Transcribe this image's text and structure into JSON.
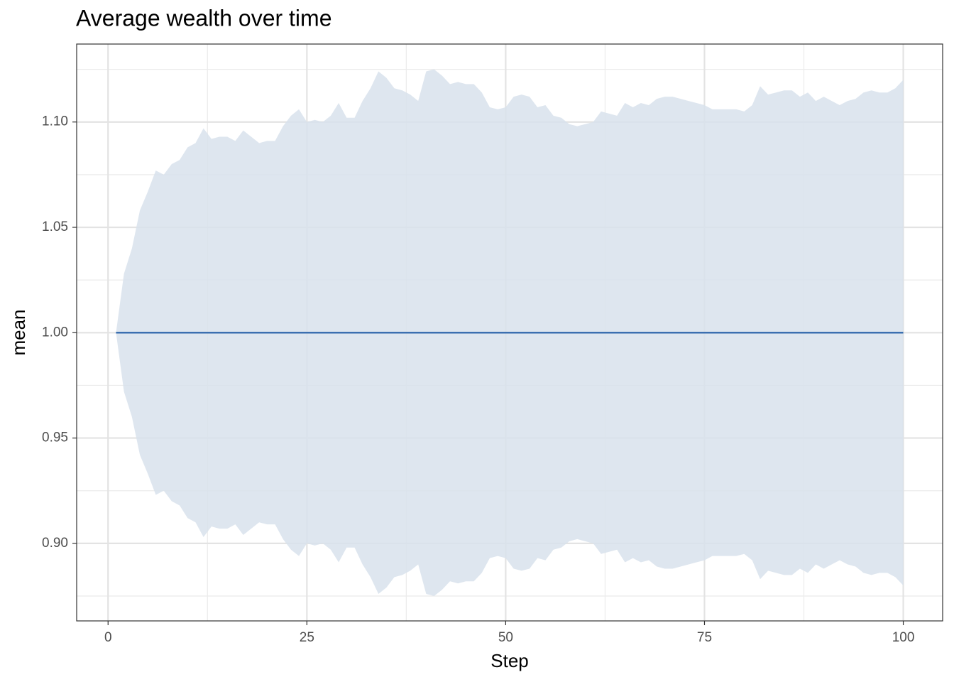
{
  "chart_data": {
    "type": "line",
    "title": "Average wealth over time",
    "x_label": "Step",
    "y_label": "mean",
    "x": [
      1,
      2,
      3,
      4,
      5,
      6,
      7,
      8,
      9,
      10,
      11,
      12,
      13,
      14,
      15,
      16,
      17,
      18,
      19,
      20,
      21,
      22,
      23,
      24,
      25,
      26,
      27,
      28,
      29,
      30,
      31,
      32,
      33,
      34,
      35,
      36,
      37,
      38,
      39,
      40,
      41,
      42,
      43,
      44,
      45,
      46,
      47,
      48,
      49,
      50,
      51,
      52,
      53,
      54,
      55,
      56,
      57,
      58,
      59,
      60,
      61,
      62,
      63,
      64,
      65,
      66,
      67,
      68,
      69,
      70,
      71,
      72,
      73,
      74,
      75,
      76,
      77,
      78,
      79,
      80,
      81,
      82,
      83,
      84,
      85,
      86,
      87,
      88,
      89,
      90,
      91,
      92,
      93,
      94,
      95,
      96,
      97,
      98,
      99,
      100
    ],
    "series": [
      {
        "color": "#3b6fb0",
        "values": [
          1,
          1,
          1,
          1,
          1,
          1,
          1,
          1,
          1,
          1,
          1,
          1,
          1,
          1,
          1,
          1,
          1,
          1,
          1,
          1,
          1,
          1,
          1,
          1,
          1,
          1,
          1,
          1,
          1,
          1,
          1,
          1,
          1,
          1,
          1,
          1,
          1,
          1,
          1,
          1,
          1,
          1,
          1,
          1,
          1,
          1,
          1,
          1,
          1,
          1,
          1,
          1,
          1,
          1,
          1,
          1,
          1,
          1,
          1,
          1,
          1,
          1,
          1,
          1,
          1,
          1,
          1,
          1,
          1,
          1,
          1,
          1,
          1,
          1,
          1,
          1,
          1,
          1,
          1,
          1,
          1,
          1,
          1,
          1,
          1,
          1,
          1,
          1,
          1,
          1,
          1,
          1,
          1,
          1,
          1,
          1,
          1,
          1,
          1,
          1
        ]
      }
    ],
    "band": {
      "color": "#d8e2ec",
      "upper": [
        1.0,
        1.028,
        1.04,
        1.058,
        1.067,
        1.077,
        1.075,
        1.08,
        1.082,
        1.088,
        1.09,
        1.097,
        1.092,
        1.093,
        1.093,
        1.091,
        1.096,
        1.093,
        1.09,
        1.091,
        1.091,
        1.098,
        1.103,
        1.106,
        1.1,
        1.101,
        1.1,
        1.103,
        1.109,
        1.102,
        1.102,
        1.11,
        1.116,
        1.124,
        1.121,
        1.116,
        1.115,
        1.113,
        1.11,
        1.124,
        1.125,
        1.122,
        1.118,
        1.119,
        1.118,
        1.118,
        1.114,
        1.107,
        1.106,
        1.107,
        1.112,
        1.113,
        1.112,
        1.107,
        1.108,
        1.103,
        1.102,
        1.099,
        1.098,
        1.099,
        1.1,
        1.105,
        1.104,
        1.103,
        1.109,
        1.107,
        1.109,
        1.108,
        1.111,
        1.112,
        1.112,
        1.111,
        1.11,
        1.109,
        1.108,
        1.106,
        1.106,
        1.106,
        1.106,
        1.105,
        1.108,
        1.117,
        1.113,
        1.114,
        1.115,
        1.115,
        1.112,
        1.114,
        1.11,
        1.112,
        1.11,
        1.108,
        1.11,
        1.111,
        1.114,
        1.115,
        1.114,
        1.114,
        1.116,
        1.12
      ],
      "lower": [
        1.0,
        0.972,
        0.96,
        0.942,
        0.933,
        0.923,
        0.925,
        0.92,
        0.918,
        0.912,
        0.91,
        0.903,
        0.908,
        0.907,
        0.907,
        0.909,
        0.904,
        0.907,
        0.91,
        0.909,
        0.909,
        0.902,
        0.897,
        0.894,
        0.9,
        0.899,
        0.9,
        0.897,
        0.891,
        0.898,
        0.898,
        0.89,
        0.884,
        0.876,
        0.879,
        0.884,
        0.885,
        0.887,
        0.89,
        0.876,
        0.875,
        0.878,
        0.882,
        0.881,
        0.882,
        0.882,
        0.886,
        0.893,
        0.894,
        0.893,
        0.888,
        0.887,
        0.888,
        0.893,
        0.892,
        0.897,
        0.898,
        0.901,
        0.902,
        0.901,
        0.9,
        0.895,
        0.896,
        0.897,
        0.891,
        0.893,
        0.891,
        0.892,
        0.889,
        0.888,
        0.888,
        0.889,
        0.89,
        0.891,
        0.892,
        0.894,
        0.894,
        0.894,
        0.894,
        0.895,
        0.892,
        0.883,
        0.887,
        0.886,
        0.885,
        0.885,
        0.888,
        0.886,
        0.89,
        0.888,
        0.89,
        0.892,
        0.89,
        0.889,
        0.886,
        0.885,
        0.886,
        0.886,
        0.884,
        0.88
      ]
    },
    "xlim": [
      -3.95,
      104.95
    ],
    "ylim": [
      0.8632,
      1.137
    ],
    "xticks": [
      0,
      25,
      50,
      75,
      100
    ],
    "yticks": [
      {
        "value": 0.9,
        "label": "0.90"
      },
      0.95,
      {
        "value": 1.0,
        "label": "1.00"
      },
      1.05,
      {
        "value": 1.1,
        "label": "1.10"
      }
    ],
    "xminor": [
      12.5,
      37.5,
      62.5,
      87.5
    ],
    "yminor": [
      0.875,
      0.925,
      0.975,
      1.025,
      1.075,
      1.125
    ],
    "grid": true
  }
}
